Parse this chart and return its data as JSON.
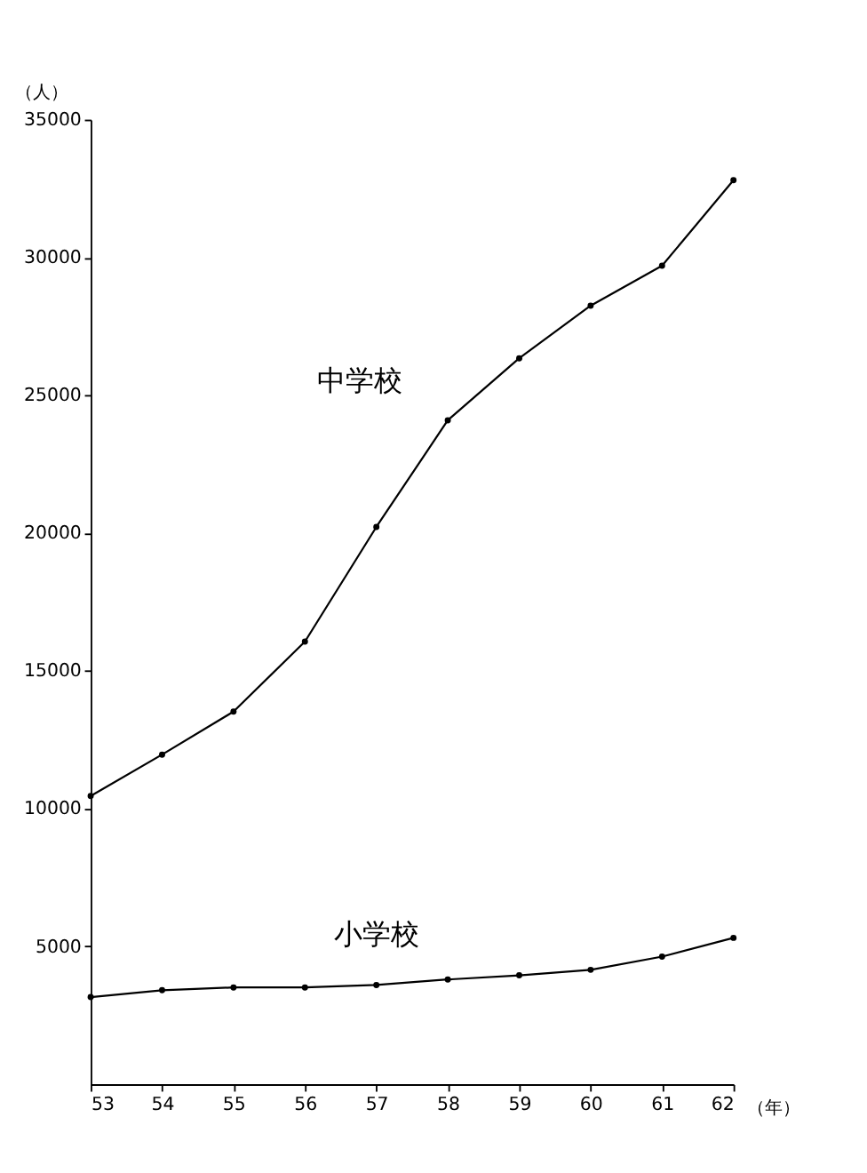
{
  "chart_data": {
    "type": "line",
    "xlabel": "（年）",
    "ylabel": "（人）",
    "x": [
      53,
      54,
      55,
      56,
      57,
      58,
      59,
      60,
      61,
      62
    ],
    "series": [
      {
        "name": "中学校",
        "color": "#000000",
        "values": [
          10460,
          11960,
          13520,
          16060,
          20220,
          24090,
          26340,
          28250,
          29700,
          32800
        ]
      },
      {
        "name": "小学校",
        "color": "#000000",
        "values": [
          3160,
          3410,
          3510,
          3510,
          3600,
          3800,
          3950,
          4150,
          4630,
          5310
        ]
      }
    ],
    "xlim": [
      53,
      62
    ],
    "xticks": [
      53,
      54,
      55,
      56,
      57,
      58,
      59,
      60,
      61,
      62
    ],
    "ylim": [
      0,
      35000
    ],
    "yticks": [
      5000,
      10000,
      15000,
      20000,
      25000,
      30000,
      35000
    ],
    "grid": false,
    "legend": false,
    "marker": "circle",
    "line_style": "solid"
  }
}
